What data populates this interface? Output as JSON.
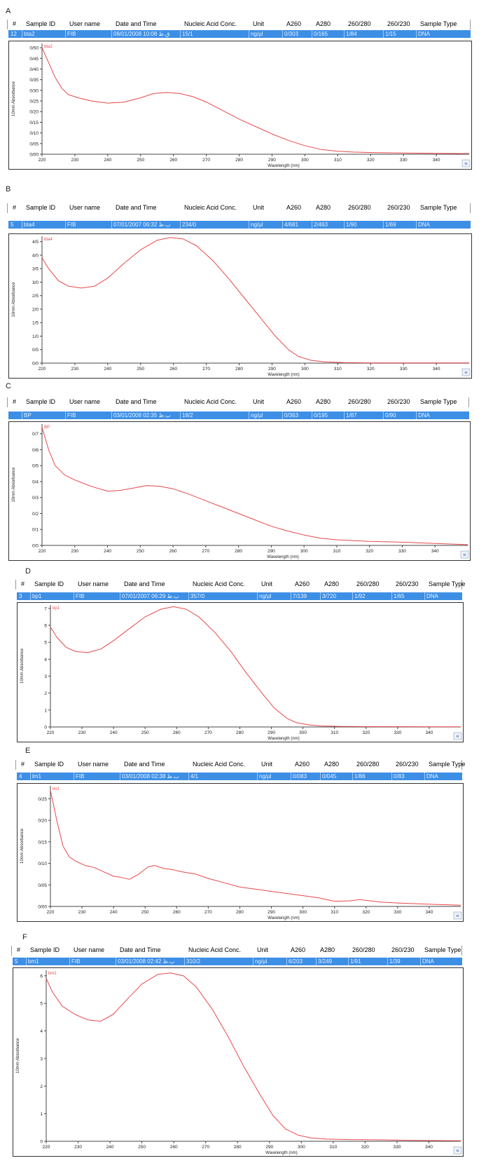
{
  "columns": [
    "#",
    "Sample ID",
    "User name",
    "Date and Time",
    "Nucleic Acid Conc.",
    "Unit",
    "A260",
    "A280",
    "260/280",
    "260/230",
    "Sample Type"
  ],
  "colors": {
    "curve": "#e8484a",
    "row_bg": "#3d8fe6",
    "axis": "#444444"
  },
  "nav_glyph": "«",
  "chart_data": [
    {
      "panel": "A",
      "type": "line",
      "row": {
        "num": "12",
        "sample_id": "bta2",
        "user": "FIB",
        "datetime": "08/01/2008 10:08 ق.ظ",
        "conc": "15/1",
        "unit": "ng/µl",
        "a260": "0/303",
        "a280": "0/165",
        "r260_280": "1/84",
        "r260_230": "1/15",
        "type": "DNA"
      },
      "series_label": "bta2",
      "ylabel": "10mm Absorbance",
      "xlabel": "Wavelength (nm)",
      "xlim": [
        220,
        350
      ],
      "ylim": [
        0,
        0.52
      ],
      "y_ticks": [
        {
          "v": 0.0,
          "t": "0/00"
        },
        {
          "v": 0.05,
          "t": "0/05"
        },
        {
          "v": 0.1,
          "t": "0/10"
        },
        {
          "v": 0.15,
          "t": "0/15"
        },
        {
          "v": 0.2,
          "t": "0/20"
        },
        {
          "v": 0.25,
          "t": "0/25"
        },
        {
          "v": 0.3,
          "t": "0/30"
        },
        {
          "v": 0.35,
          "t": "0/35"
        },
        {
          "v": 0.4,
          "t": "0/40"
        },
        {
          "v": 0.45,
          "t": "0/45"
        },
        {
          "v": 0.5,
          "t": "0/50"
        }
      ],
      "x_ticks": [
        220,
        230,
        240,
        250,
        260,
        270,
        280,
        290,
        300,
        310,
        320,
        330,
        340
      ],
      "points": [
        [
          220,
          0.5
        ],
        [
          222,
          0.43
        ],
        [
          224,
          0.36
        ],
        [
          226,
          0.31
        ],
        [
          228,
          0.28
        ],
        [
          231,
          0.265
        ],
        [
          235,
          0.25
        ],
        [
          240,
          0.24
        ],
        [
          245,
          0.245
        ],
        [
          250,
          0.265
        ],
        [
          254,
          0.285
        ],
        [
          258,
          0.29
        ],
        [
          262,
          0.285
        ],
        [
          266,
          0.27
        ],
        [
          270,
          0.245
        ],
        [
          275,
          0.205
        ],
        [
          280,
          0.165
        ],
        [
          285,
          0.13
        ],
        [
          290,
          0.095
        ],
        [
          295,
          0.065
        ],
        [
          300,
          0.04
        ],
        [
          305,
          0.022
        ],
        [
          310,
          0.014
        ],
        [
          315,
          0.01
        ],
        [
          320,
          0.008
        ],
        [
          330,
          0.006
        ],
        [
          340,
          0.004
        ],
        [
          350,
          0.003
        ]
      ]
    },
    {
      "panel": "B",
      "type": "line",
      "row": {
        "num": "5",
        "sample_id": "bta4",
        "user": "FIB",
        "datetime": "07/01/2007 06:32 ب.ظ",
        "conc": "234/0",
        "unit": "ng/µl",
        "a260": "4/681",
        "a280": "2/463",
        "r260_280": "1/90",
        "r260_230": "1/69",
        "type": "DNA"
      },
      "series_label": "bta4",
      "ylabel": "10mm Absorbance",
      "xlabel": "Wavelength (nm)",
      "xlim": [
        220,
        350
      ],
      "ylim": [
        0,
        4.7
      ],
      "y_ticks": [
        {
          "v": 0.0,
          "t": "0/0"
        },
        {
          "v": 0.5,
          "t": "0/5"
        },
        {
          "v": 1.0,
          "t": "1/0"
        },
        {
          "v": 1.5,
          "t": "1/5"
        },
        {
          "v": 2.0,
          "t": "2/0"
        },
        {
          "v": 2.5,
          "t": "2/5"
        },
        {
          "v": 3.0,
          "t": "3/0"
        },
        {
          "v": 3.5,
          "t": "3/5"
        },
        {
          "v": 4.0,
          "t": "4/0"
        },
        {
          "v": 4.5,
          "t": "4/5"
        }
      ],
      "x_ticks": [
        220,
        230,
        240,
        250,
        260,
        270,
        280,
        290,
        300,
        310,
        320,
        330,
        340
      ],
      "points": [
        [
          220,
          3.9
        ],
        [
          222,
          3.5
        ],
        [
          225,
          3.05
        ],
        [
          228,
          2.85
        ],
        [
          232,
          2.78
        ],
        [
          236,
          2.85
        ],
        [
          240,
          3.15
        ],
        [
          245,
          3.7
        ],
        [
          250,
          4.2
        ],
        [
          255,
          4.55
        ],
        [
          259,
          4.65
        ],
        [
          263,
          4.6
        ],
        [
          267,
          4.35
        ],
        [
          272,
          3.8
        ],
        [
          277,
          3.1
        ],
        [
          282,
          2.35
        ],
        [
          287,
          1.6
        ],
        [
          291,
          1.0
        ],
        [
          295,
          0.5
        ],
        [
          298,
          0.25
        ],
        [
          302,
          0.1
        ],
        [
          306,
          0.05
        ],
        [
          312,
          0.02
        ],
        [
          320,
          0.01
        ],
        [
          350,
          0.01
        ]
      ]
    },
    {
      "panel": "C",
      "type": "line",
      "row": {
        "num": "",
        "sample_id": "BP",
        "user": "FIB",
        "datetime": "03/01/2008 02:35 ب.ظ",
        "conc": "18/2",
        "unit": "ng/µl",
        "a260": "0/363",
        "a280": "0/195",
        "r260_280": "1/87",
        "r260_230": "0/90",
        "type": "DNA"
      },
      "series_label": "BP",
      "ylabel": "10mm Absorbance",
      "xlabel": "Wavelength (nm)",
      "xlim": [
        220,
        350
      ],
      "ylim": [
        0,
        0.76
      ],
      "y_ticks": [
        {
          "v": 0.0,
          "t": "0/0"
        },
        {
          "v": 0.1,
          "t": "0/1"
        },
        {
          "v": 0.2,
          "t": "0/2"
        },
        {
          "v": 0.3,
          "t": "0/3"
        },
        {
          "v": 0.4,
          "t": "0/4"
        },
        {
          "v": 0.5,
          "t": "0/5"
        },
        {
          "v": 0.6,
          "t": "0/6"
        },
        {
          "v": 0.7,
          "t": "0/7"
        }
      ],
      "x_ticks": [
        220,
        230,
        240,
        250,
        260,
        270,
        280,
        290,
        300,
        310,
        320,
        330,
        340
      ],
      "points": [
        [
          220,
          0.74
        ],
        [
          222,
          0.6
        ],
        [
          224,
          0.5
        ],
        [
          227,
          0.44
        ],
        [
          230,
          0.41
        ],
        [
          235,
          0.37
        ],
        [
          240,
          0.34
        ],
        [
          244,
          0.345
        ],
        [
          248,
          0.36
        ],
        [
          252,
          0.375
        ],
        [
          256,
          0.37
        ],
        [
          260,
          0.355
        ],
        [
          265,
          0.32
        ],
        [
          270,
          0.28
        ],
        [
          275,
          0.24
        ],
        [
          280,
          0.2
        ],
        [
          285,
          0.16
        ],
        [
          290,
          0.12
        ],
        [
          295,
          0.09
        ],
        [
          300,
          0.065
        ],
        [
          305,
          0.045
        ],
        [
          310,
          0.035
        ],
        [
          320,
          0.025
        ],
        [
          330,
          0.02
        ],
        [
          340,
          0.012
        ],
        [
          350,
          0.005
        ]
      ]
    },
    {
      "panel": "D",
      "type": "line",
      "row": {
        "num": "3",
        "sample_id": "bp1",
        "user": "FIB",
        "datetime": "07/01/2007 06:29 ب.ظ",
        "conc": "357/0",
        "unit": "ng/µl",
        "a260": "7/139",
        "a280": "3/720",
        "r260_280": "1/92",
        "r260_230": "1/65",
        "type": "DNA"
      },
      "series_label": "bp1",
      "ylabel": "10mm Absorbance",
      "xlabel": "Wavelength (nm)",
      "xlim": [
        220,
        350
      ],
      "ylim": [
        0,
        7.2
      ],
      "y_ticks": [
        {
          "v": 0,
          "t": "0"
        },
        {
          "v": 1,
          "t": "1"
        },
        {
          "v": 2,
          "t": "2"
        },
        {
          "v": 3,
          "t": "3"
        },
        {
          "v": 4,
          "t": "4"
        },
        {
          "v": 5,
          "t": "5"
        },
        {
          "v": 6,
          "t": "6"
        },
        {
          "v": 7,
          "t": "7"
        }
      ],
      "x_ticks": [
        220,
        230,
        240,
        250,
        260,
        270,
        280,
        290,
        300,
        310,
        320,
        330,
        340
      ],
      "points": [
        [
          220,
          5.9
        ],
        [
          222,
          5.3
        ],
        [
          225,
          4.7
        ],
        [
          228,
          4.45
        ],
        [
          232,
          4.4
        ],
        [
          236,
          4.6
        ],
        [
          240,
          5.1
        ],
        [
          245,
          5.8
        ],
        [
          250,
          6.5
        ],
        [
          255,
          6.95
        ],
        [
          259,
          7.1
        ],
        [
          263,
          6.95
        ],
        [
          267,
          6.5
        ],
        [
          272,
          5.6
        ],
        [
          277,
          4.5
        ],
        [
          282,
          3.2
        ],
        [
          287,
          2.0
        ],
        [
          291,
          1.1
        ],
        [
          295,
          0.5
        ],
        [
          298,
          0.25
        ],
        [
          302,
          0.12
        ],
        [
          306,
          0.06
        ],
        [
          312,
          0.03
        ],
        [
          320,
          0.02
        ],
        [
          350,
          0.01
        ]
      ]
    },
    {
      "panel": "E",
      "type": "line",
      "row": {
        "num": "4",
        "sample_id": "lm1",
        "user": "FIB",
        "datetime": "03/01/2008 02:38 ب.ظ",
        "conc": "4/1",
        "unit": "ng/µl",
        "a260": "0/083",
        "a280": "0/045",
        "r260_280": "1/86",
        "r260_230": "0/83",
        "type": "DNA"
      },
      "series_label": "lm1",
      "ylabel": "10mm Absorbance",
      "xlabel": "Wavelength (nm)",
      "xlim": [
        220,
        350
      ],
      "ylim": [
        0,
        0.28
      ],
      "y_ticks": [
        {
          "v": 0.0,
          "t": "0/00"
        },
        {
          "v": 0.05,
          "t": "0/05"
        },
        {
          "v": 0.1,
          "t": "0/10"
        },
        {
          "v": 0.15,
          "t": "0/15"
        },
        {
          "v": 0.2,
          "t": "0/20"
        },
        {
          "v": 0.25,
          "t": "0/25"
        }
      ],
      "x_ticks": [
        220,
        230,
        240,
        250,
        260,
        270,
        280,
        290,
        300,
        310,
        320,
        330,
        340
      ],
      "points": [
        [
          220,
          0.27
        ],
        [
          222,
          0.2
        ],
        [
          224,
          0.14
        ],
        [
          226,
          0.115
        ],
        [
          228,
          0.105
        ],
        [
          231,
          0.095
        ],
        [
          234,
          0.09
        ],
        [
          237,
          0.08
        ],
        [
          240,
          0.07
        ],
        [
          242,
          0.068
        ],
        [
          245,
          0.063
        ],
        [
          248,
          0.075
        ],
        [
          251,
          0.092
        ],
        [
          253,
          0.095
        ],
        [
          256,
          0.088
        ],
        [
          259,
          0.085
        ],
        [
          262,
          0.08
        ],
        [
          266,
          0.075
        ],
        [
          270,
          0.065
        ],
        [
          275,
          0.055
        ],
        [
          280,
          0.045
        ],
        [
          285,
          0.04
        ],
        [
          290,
          0.035
        ],
        [
          295,
          0.03
        ],
        [
          300,
          0.025
        ],
        [
          305,
          0.02
        ],
        [
          310,
          0.012
        ],
        [
          315,
          0.013
        ],
        [
          318,
          0.016
        ],
        [
          320,
          0.014
        ],
        [
          325,
          0.01
        ],
        [
          330,
          0.008
        ],
        [
          340,
          0.005
        ],
        [
          350,
          0.003
        ]
      ]
    },
    {
      "panel": "F",
      "type": "line",
      "row": {
        "num": "5",
        "sample_id": "bm1",
        "user": "FIB",
        "datetime": "03/01/2008 02:42 ب.ظ",
        "conc": "310/2",
        "unit": "ng/µl",
        "a260": "6/203",
        "a280": "3/249",
        "r260_280": "1/91",
        "r260_230": "1/39",
        "type": "DNA"
      },
      "series_label": "bm1",
      "ylabel": "10mm Absorbance",
      "xlabel": "Wavelength (nm)",
      "xlim": [
        220,
        350
      ],
      "ylim": [
        0,
        6.2
      ],
      "y_ticks": [
        {
          "v": 0,
          "t": "0"
        },
        {
          "v": 1,
          "t": "1"
        },
        {
          "v": 2,
          "t": "2"
        },
        {
          "v": 3,
          "t": "3"
        },
        {
          "v": 4,
          "t": "4"
        },
        {
          "v": 5,
          "t": "5"
        },
        {
          "v": 6,
          "t": "6"
        }
      ],
      "x_ticks": [
        220,
        230,
        240,
        250,
        260,
        270,
        280,
        290,
        300,
        310,
        320,
        330,
        340
      ],
      "points": [
        [
          220,
          5.9
        ],
        [
          222,
          5.4
        ],
        [
          225,
          4.9
        ],
        [
          229,
          4.6
        ],
        [
          233,
          4.4
        ],
        [
          237,
          4.35
        ],
        [
          241,
          4.6
        ],
        [
          245,
          5.1
        ],
        [
          250,
          5.7
        ],
        [
          255,
          6.05
        ],
        [
          259,
          6.1
        ],
        [
          263,
          6.0
        ],
        [
          267,
          5.6
        ],
        [
          272,
          4.8
        ],
        [
          277,
          3.8
        ],
        [
          282,
          2.7
        ],
        [
          287,
          1.7
        ],
        [
          291,
          0.95
        ],
        [
          295,
          0.45
        ],
        [
          299,
          0.22
        ],
        [
          303,
          0.12
        ],
        [
          308,
          0.08
        ],
        [
          315,
          0.06
        ],
        [
          325,
          0.05
        ],
        [
          335,
          0.03
        ],
        [
          350,
          0.02
        ]
      ]
    }
  ]
}
